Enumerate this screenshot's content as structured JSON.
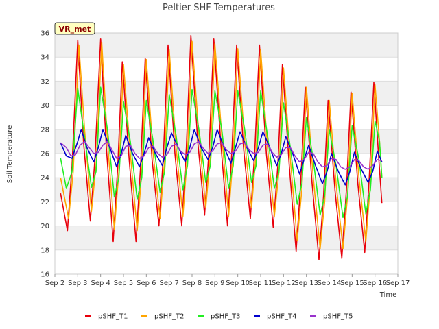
{
  "chart_data": {
    "type": "line",
    "title": "Peltier SHF Temperatures",
    "xlabel": "Time",
    "ylabel": "Soil Temperature",
    "badge": "VR_met",
    "x_start_day": 2,
    "x_end_day": 17,
    "xlim": [
      2,
      17
    ],
    "ylim": [
      16,
      36
    ],
    "yticks": [
      16,
      18,
      20,
      22,
      24,
      26,
      28,
      30,
      32,
      34,
      36
    ],
    "xtick_labels": [
      "Sep 2",
      "Sep 3",
      "Sep 4",
      "Sep 5",
      "Sep 6",
      "Sep 7",
      "Sep 8",
      "Sep 9",
      "Sep 10",
      "Sep 11",
      "Sep 12",
      "Sep 13",
      "Sep 14",
      "Sep 15",
      "Sep 16",
      "Sep 17"
    ],
    "grid": "horizontal bands",
    "legend_position": "bottom",
    "series": [
      {
        "name": "pSHF_T1",
        "color": "#e8000b",
        "points": [
          [
            2.25,
            22.7
          ],
          [
            2.55,
            19.6
          ],
          [
            2.75,
            25.0
          ],
          [
            3.0,
            35.4
          ],
          [
            3.25,
            27.0
          ],
          [
            3.55,
            20.4
          ],
          [
            3.75,
            25.5
          ],
          [
            4.0,
            35.5
          ],
          [
            4.25,
            26.5
          ],
          [
            4.55,
            18.7
          ],
          [
            4.75,
            25.0
          ],
          [
            4.95,
            33.6
          ],
          [
            5.25,
            25.5
          ],
          [
            5.55,
            18.7
          ],
          [
            5.75,
            25.0
          ],
          [
            5.95,
            33.9
          ],
          [
            6.25,
            25.5
          ],
          [
            6.55,
            20.0
          ],
          [
            6.75,
            26.0
          ],
          [
            6.95,
            35.0
          ],
          [
            7.25,
            26.0
          ],
          [
            7.55,
            20.0
          ],
          [
            7.75,
            26.5
          ],
          [
            7.95,
            35.8
          ],
          [
            8.25,
            27.0
          ],
          [
            8.55,
            20.9
          ],
          [
            8.75,
            26.5
          ],
          [
            8.95,
            35.5
          ],
          [
            9.25,
            27.0
          ],
          [
            9.55,
            20.0
          ],
          [
            9.75,
            26.5
          ],
          [
            9.95,
            35.0
          ],
          [
            10.25,
            26.5
          ],
          [
            10.55,
            20.6
          ],
          [
            10.75,
            26.5
          ],
          [
            10.95,
            35.0
          ],
          [
            11.25,
            26.0
          ],
          [
            11.55,
            19.9
          ],
          [
            11.75,
            25.0
          ],
          [
            11.95,
            33.4
          ],
          [
            12.25,
            25.0
          ],
          [
            12.55,
            17.9
          ],
          [
            12.75,
            23.5
          ],
          [
            12.95,
            31.5
          ],
          [
            13.25,
            23.5
          ],
          [
            13.55,
            17.2
          ],
          [
            13.75,
            22.5
          ],
          [
            13.95,
            30.4
          ],
          [
            14.25,
            23.0
          ],
          [
            14.55,
            17.3
          ],
          [
            14.75,
            23.0
          ],
          [
            14.95,
            31.1
          ],
          [
            15.25,
            23.5
          ],
          [
            15.55,
            17.8
          ],
          [
            15.75,
            24.0
          ],
          [
            15.95,
            31.9
          ],
          [
            16.15,
            26.0
          ],
          [
            16.3,
            21.9
          ]
        ]
      },
      {
        "name": "pSHF_T2",
        "color": "#ffa500",
        "points": [
          [
            2.25,
            24.0
          ],
          [
            2.6,
            20.6
          ],
          [
            2.8,
            24.5
          ],
          [
            3.05,
            35.0
          ],
          [
            3.3,
            28.0
          ],
          [
            3.6,
            21.2
          ],
          [
            3.8,
            25.0
          ],
          [
            4.05,
            35.2
          ],
          [
            4.3,
            27.0
          ],
          [
            4.6,
            19.7
          ],
          [
            4.8,
            24.5
          ],
          [
            5.0,
            33.4
          ],
          [
            5.3,
            26.0
          ],
          [
            5.6,
            19.6
          ],
          [
            5.8,
            24.5
          ],
          [
            6.0,
            33.8
          ],
          [
            6.3,
            26.0
          ],
          [
            6.6,
            20.6
          ],
          [
            6.8,
            25.5
          ],
          [
            7.0,
            34.6
          ],
          [
            7.3,
            26.5
          ],
          [
            7.6,
            20.8
          ],
          [
            7.8,
            26.0
          ],
          [
            8.0,
            35.3
          ],
          [
            8.3,
            27.5
          ],
          [
            8.6,
            21.5
          ],
          [
            8.8,
            26.0
          ],
          [
            9.0,
            35.1
          ],
          [
            9.3,
            27.5
          ],
          [
            9.6,
            20.8
          ],
          [
            9.8,
            26.0
          ],
          [
            10.0,
            34.7
          ],
          [
            10.3,
            27.0
          ],
          [
            10.6,
            21.5
          ],
          [
            10.8,
            26.0
          ],
          [
            11.0,
            34.6
          ],
          [
            11.3,
            26.5
          ],
          [
            11.6,
            20.8
          ],
          [
            11.8,
            24.5
          ],
          [
            12.0,
            33.1
          ],
          [
            12.3,
            25.5
          ],
          [
            12.6,
            18.8
          ],
          [
            12.8,
            23.0
          ],
          [
            13.0,
            31.5
          ],
          [
            13.3,
            24.0
          ],
          [
            13.6,
            18.1
          ],
          [
            13.8,
            22.0
          ],
          [
            14.0,
            30.4
          ],
          [
            14.3,
            23.5
          ],
          [
            14.6,
            18.1
          ],
          [
            14.8,
            22.5
          ],
          [
            15.0,
            31.0
          ],
          [
            15.3,
            24.0
          ],
          [
            15.6,
            18.7
          ],
          [
            15.8,
            23.5
          ],
          [
            16.0,
            31.7
          ],
          [
            16.2,
            27.0
          ],
          [
            16.3,
            24.0
          ]
        ]
      },
      {
        "name": "pSHF_T3",
        "color": "#22ee22",
        "points": [
          [
            2.25,
            25.6
          ],
          [
            2.5,
            23.1
          ],
          [
            2.75,
            24.5
          ],
          [
            3.0,
            31.4
          ],
          [
            3.25,
            28.0
          ],
          [
            3.6,
            23.2
          ],
          [
            3.8,
            24.5
          ],
          [
            4.0,
            31.5
          ],
          [
            4.3,
            28.0
          ],
          [
            4.6,
            22.4
          ],
          [
            4.8,
            24.0
          ],
          [
            5.0,
            30.3
          ],
          [
            5.3,
            27.0
          ],
          [
            5.6,
            22.2
          ],
          [
            5.8,
            24.0
          ],
          [
            6.0,
            30.4
          ],
          [
            6.3,
            27.0
          ],
          [
            6.6,
            22.8
          ],
          [
            6.8,
            24.5
          ],
          [
            7.0,
            30.9
          ],
          [
            7.3,
            27.5
          ],
          [
            7.6,
            23.0
          ],
          [
            7.8,
            25.0
          ],
          [
            8.0,
            31.3
          ],
          [
            8.3,
            28.0
          ],
          [
            8.6,
            23.6
          ],
          [
            8.8,
            25.0
          ],
          [
            9.0,
            31.2
          ],
          [
            9.3,
            28.0
          ],
          [
            9.6,
            23.1
          ],
          [
            9.8,
            25.0
          ],
          [
            10.0,
            31.2
          ],
          [
            10.3,
            28.0
          ],
          [
            10.6,
            23.6
          ],
          [
            10.8,
            25.0
          ],
          [
            11.0,
            31.2
          ],
          [
            11.3,
            27.5
          ],
          [
            11.6,
            23.1
          ],
          [
            11.8,
            24.5
          ],
          [
            12.0,
            30.2
          ],
          [
            12.3,
            26.5
          ],
          [
            12.6,
            21.8
          ],
          [
            12.8,
            23.5
          ],
          [
            13.0,
            29.0
          ],
          [
            13.3,
            25.5
          ],
          [
            13.6,
            20.9
          ],
          [
            13.8,
            22.5
          ],
          [
            14.0,
            28.0
          ],
          [
            14.3,
            25.0
          ],
          [
            14.6,
            20.7
          ],
          [
            14.8,
            22.5
          ],
          [
            15.0,
            28.3
          ],
          [
            15.3,
            25.5
          ],
          [
            15.6,
            21.0
          ],
          [
            15.8,
            23.0
          ],
          [
            16.0,
            28.7
          ],
          [
            16.2,
            27.0
          ],
          [
            16.3,
            24.0
          ]
        ]
      },
      {
        "name": "pSHF_T4",
        "color": "#0000cd",
        "points": [
          [
            2.25,
            26.9
          ],
          [
            2.5,
            25.8
          ],
          [
            2.75,
            25.6
          ],
          [
            3.0,
            27.0
          ],
          [
            3.15,
            28.0
          ],
          [
            3.4,
            26.5
          ],
          [
            3.7,
            25.3
          ],
          [
            3.9,
            26.5
          ],
          [
            4.1,
            28.0
          ],
          [
            4.4,
            26.5
          ],
          [
            4.7,
            24.9
          ],
          [
            4.9,
            26.0
          ],
          [
            5.1,
            27.5
          ],
          [
            5.4,
            26.0
          ],
          [
            5.7,
            24.9
          ],
          [
            5.9,
            26.0
          ],
          [
            6.1,
            27.3
          ],
          [
            6.4,
            26.0
          ],
          [
            6.7,
            25.0
          ],
          [
            6.9,
            26.5
          ],
          [
            7.1,
            27.7
          ],
          [
            7.4,
            26.5
          ],
          [
            7.7,
            25.3
          ],
          [
            7.9,
            26.5
          ],
          [
            8.1,
            28.0
          ],
          [
            8.4,
            26.5
          ],
          [
            8.7,
            25.5
          ],
          [
            8.9,
            26.5
          ],
          [
            9.1,
            28.0
          ],
          [
            9.4,
            26.5
          ],
          [
            9.7,
            25.2
          ],
          [
            9.9,
            26.5
          ],
          [
            10.1,
            27.8
          ],
          [
            10.4,
            26.5
          ],
          [
            10.7,
            25.4
          ],
          [
            10.9,
            26.5
          ],
          [
            11.1,
            27.8
          ],
          [
            11.4,
            26.5
          ],
          [
            11.7,
            25.0
          ],
          [
            11.9,
            26.0
          ],
          [
            12.1,
            27.4
          ],
          [
            12.4,
            26.0
          ],
          [
            12.7,
            24.3
          ],
          [
            12.9,
            25.5
          ],
          [
            13.1,
            26.7
          ],
          [
            13.4,
            25.0
          ],
          [
            13.7,
            23.5
          ],
          [
            13.9,
            24.5
          ],
          [
            14.1,
            26.0
          ],
          [
            14.4,
            24.5
          ],
          [
            14.7,
            23.4
          ],
          [
            14.9,
            24.5
          ],
          [
            15.1,
            26.1
          ],
          [
            15.4,
            24.7
          ],
          [
            15.7,
            23.6
          ],
          [
            15.9,
            24.5
          ],
          [
            16.1,
            26.2
          ],
          [
            16.3,
            25.3
          ]
        ]
      },
      {
        "name": "pSHF_T5",
        "color": "#9932cc",
        "points": [
          [
            2.25,
            26.9
          ],
          [
            2.5,
            26.5
          ],
          [
            2.7,
            25.8
          ],
          [
            2.9,
            25.9
          ],
          [
            3.1,
            26.7
          ],
          [
            3.3,
            27.0
          ],
          [
            3.5,
            26.5
          ],
          [
            3.7,
            26.0
          ],
          [
            3.9,
            26.1
          ],
          [
            4.1,
            26.7
          ],
          [
            4.3,
            27.0
          ],
          [
            4.5,
            26.3
          ],
          [
            4.7,
            25.6
          ],
          [
            4.9,
            25.8
          ],
          [
            5.1,
            26.6
          ],
          [
            5.3,
            26.7
          ],
          [
            5.5,
            26.0
          ],
          [
            5.7,
            25.6
          ],
          [
            5.9,
            25.8
          ],
          [
            6.1,
            26.5
          ],
          [
            6.3,
            26.6
          ],
          [
            6.5,
            26.0
          ],
          [
            6.7,
            25.7
          ],
          [
            6.9,
            25.9
          ],
          [
            7.1,
            26.6
          ],
          [
            7.3,
            26.8
          ],
          [
            7.5,
            26.2
          ],
          [
            7.7,
            25.9
          ],
          [
            7.9,
            26.1
          ],
          [
            8.1,
            26.8
          ],
          [
            8.3,
            27.0
          ],
          [
            8.5,
            26.4
          ],
          [
            8.7,
            26.0
          ],
          [
            8.9,
            26.2
          ],
          [
            9.1,
            26.8
          ],
          [
            9.3,
            26.9
          ],
          [
            9.5,
            26.3
          ],
          [
            9.7,
            26.0
          ],
          [
            9.9,
            26.2
          ],
          [
            10.1,
            26.8
          ],
          [
            10.3,
            26.9
          ],
          [
            10.5,
            26.3
          ],
          [
            10.7,
            26.0
          ],
          [
            10.9,
            26.1
          ],
          [
            11.1,
            26.7
          ],
          [
            11.3,
            26.8
          ],
          [
            11.5,
            26.1
          ],
          [
            11.7,
            25.7
          ],
          [
            11.9,
            25.9
          ],
          [
            12.1,
            26.5
          ],
          [
            12.3,
            26.5
          ],
          [
            12.5,
            25.8
          ],
          [
            12.7,
            25.3
          ],
          [
            12.9,
            25.5
          ],
          [
            13.1,
            26.1
          ],
          [
            13.3,
            26.0
          ],
          [
            13.5,
            25.3
          ],
          [
            13.7,
            24.9
          ],
          [
            13.9,
            25.0
          ],
          [
            14.1,
            25.6
          ],
          [
            14.3,
            25.5
          ],
          [
            14.5,
            24.9
          ],
          [
            14.7,
            24.7
          ],
          [
            14.9,
            24.9
          ],
          [
            15.1,
            25.5
          ],
          [
            15.3,
            25.4
          ],
          [
            15.5,
            24.9
          ],
          [
            15.7,
            24.7
          ],
          [
            15.9,
            25.0
          ],
          [
            16.1,
            25.5
          ],
          [
            16.3,
            25.4
          ]
        ]
      }
    ]
  }
}
